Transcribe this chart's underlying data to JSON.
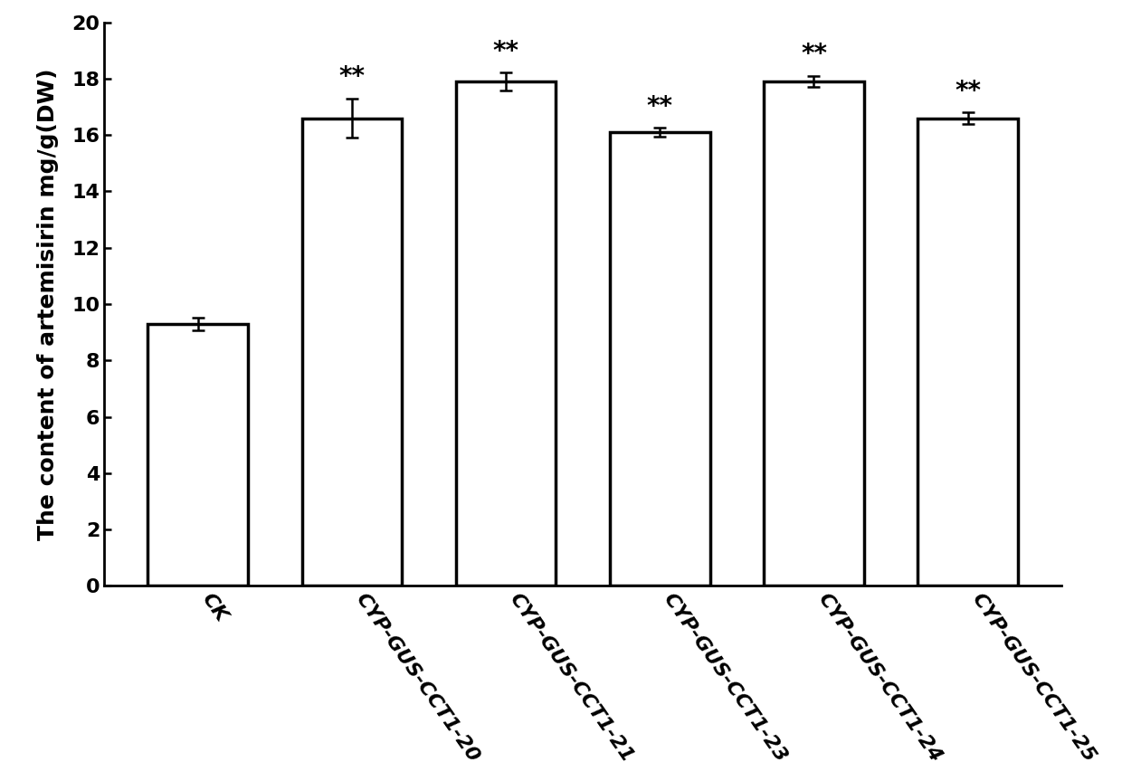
{
  "categories": [
    "CK",
    "CYP-GUS-CCT1-20",
    "CYP-GUS-CCT1-21",
    "CYP-GUS-CCT1-23",
    "CYP-GUS-CCT1-24",
    "CYP-GUS-CCT1-25"
  ],
  "values": [
    9.3,
    16.6,
    17.9,
    16.1,
    17.9,
    16.6
  ],
  "errors": [
    0.22,
    0.7,
    0.32,
    0.15,
    0.2,
    0.2
  ],
  "significance": [
    "",
    "**",
    "**",
    "**",
    "**",
    "**"
  ],
  "ylabel": "The content of artemisirin mg/g(DW)",
  "ylim": [
    0,
    20
  ],
  "yticks": [
    0,
    2,
    4,
    6,
    8,
    10,
    12,
    14,
    16,
    18,
    20
  ],
  "bar_color": "#ffffff",
  "bar_edgecolor": "#000000",
  "bar_linewidth": 2.5,
  "error_color": "#000000",
  "error_linewidth": 1.8,
  "error_capsize": 5,
  "sig_fontsize": 20,
  "ylabel_fontsize": 18,
  "tick_fontsize": 16,
  "xlabel_rotation": -55,
  "xlabel_fontsize": 16,
  "background_color": "#ffffff",
  "bar_width": 0.65
}
